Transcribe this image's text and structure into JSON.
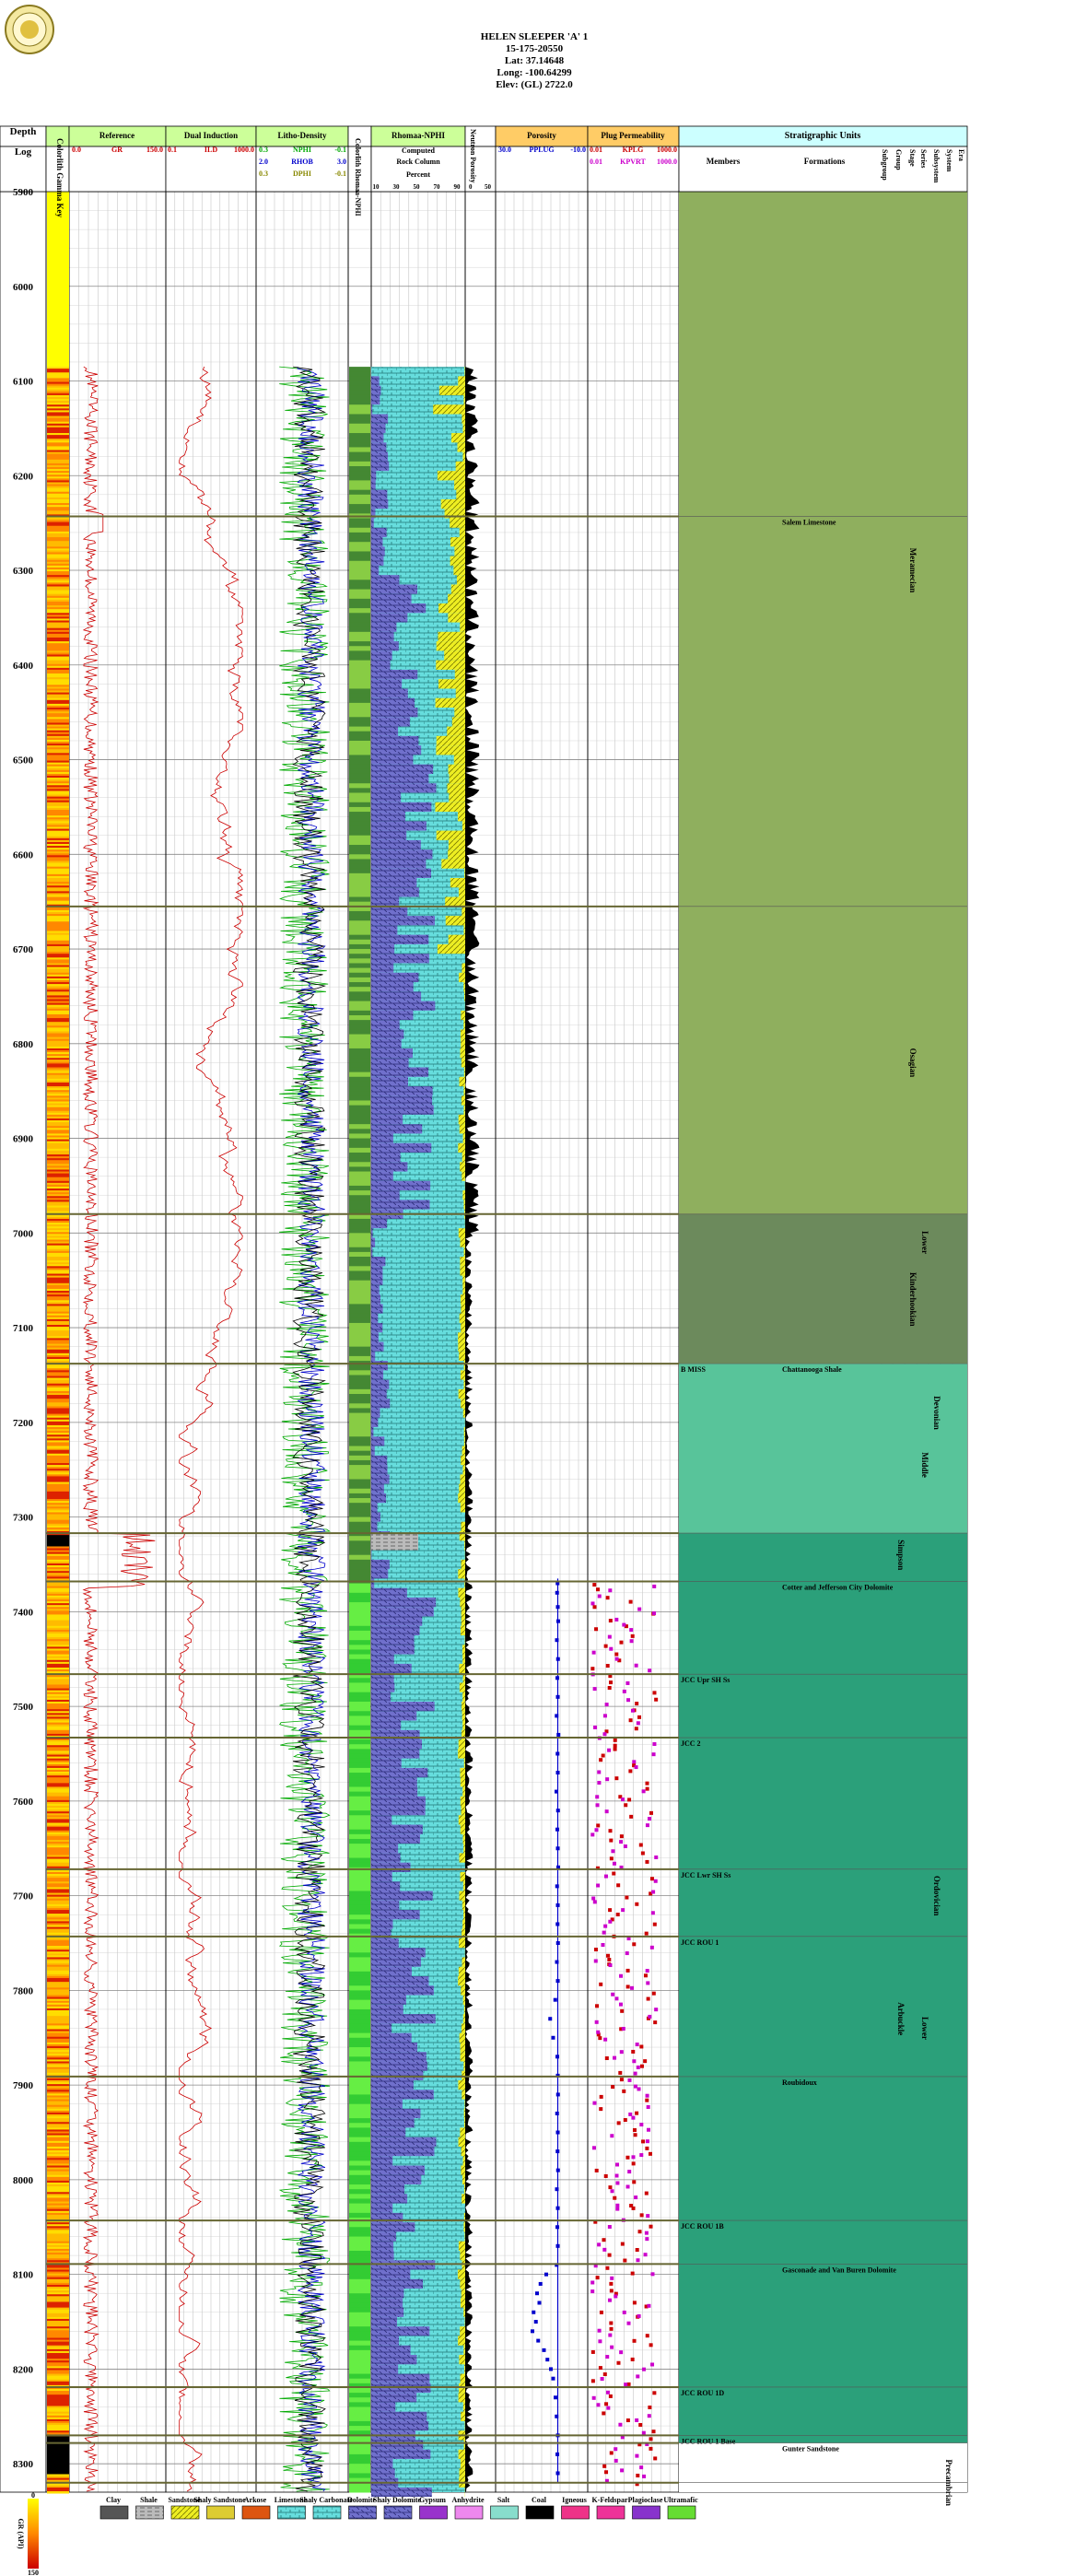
{
  "header": {
    "well_name": "HELEN SLEEPER 'A' 1",
    "api": "15-175-20550",
    "lat": "Lat: 37.14648",
    "long": "Long: -100.64299",
    "elev": "Elev: (GL) 2722.0"
  },
  "colors": {
    "gr": "#cc0000",
    "nphi": "#00aa00",
    "rhob": "#0000cc",
    "dphi": "#888800",
    "ppl": "#0000cc",
    "kplg": "#cc0000",
    "kpvrt": "#cc00cc",
    "track_hdr": "#ccff99",
    "porosity_hdr": "#ffcc66",
    "strat_hdr": "#ccffff",
    "carb_green": "#33cc33",
    "lime_blue": "#6666cc",
    "dolo_cyan": "#66dddd",
    "sand_yellow": "#dddd22"
  },
  "tracks": {
    "depth": {
      "title": "Depth",
      "subtitle": "Log"
    },
    "color_key": {
      "label": "Colorlith Gamma Key"
    },
    "reference": {
      "title": "Reference",
      "curve": "GR",
      "min": "0.0",
      "max": "150.0"
    },
    "induction": {
      "title": "Dual Induction",
      "curve": "ILD",
      "min": "0.1",
      "max": "1000.0"
    },
    "litho": {
      "title": "Litho-Density",
      "c1": "NPHI",
      "c1min": "0.3",
      "c1max": "-0.1",
      "c2": "RHOB",
      "c2min": "2.0",
      "c2max": "3.0",
      "c3": "DPHI",
      "c3min": "0.3",
      "c3max": "-0.1"
    },
    "colorlith": {
      "label": "Colorlith Rhomaa-NPHI"
    },
    "rhomaa": {
      "title": "Rhomaa-NPHI",
      "l1": "Computed",
      "l2": "Rock Column",
      "l3": "Percent",
      "ticks": [
        "10",
        "30",
        "50",
        "70",
        "90"
      ]
    },
    "neutron": {
      "label": "Neutron Porosity",
      "ticks": [
        "0",
        "50"
      ]
    },
    "porosity": {
      "title": "Porosity",
      "curve": "PPLUG",
      "min": "30.0",
      "max": "-10.0"
    },
    "perm": {
      "title": "Plug Permeability",
      "c1": "KPLG",
      "c1min": "0.01",
      "c1max": "1000.0",
      "c2": "KPVRT",
      "c2min": "0.01",
      "c2max": "1000.0"
    },
    "strat": {
      "title": "Stratigraphic Units",
      "members": "Members",
      "formations": "Formations",
      "cols": [
        "Subgroup",
        "Group",
        "Stage",
        "Series",
        "Subsystem",
        "System",
        "Era"
      ]
    }
  },
  "chart_data": {
    "type": "well_log",
    "depth_range": [
      5900,
      8330
    ],
    "depth_ticks": [
      5900,
      6000,
      6100,
      6200,
      6300,
      6400,
      6500,
      6600,
      6700,
      6800,
      6900,
      7000,
      7100,
      7200,
      7300,
      7400,
      7500,
      7600,
      7700,
      7800,
      7900,
      8000,
      8100,
      8200,
      8300
    ],
    "log_data_start": 6085,
    "tops": [
      {
        "depth": 6243,
        "formation": "Salem Limestone",
        "member": ""
      },
      {
        "depth": 6655,
        "formation": "",
        "member": ""
      },
      {
        "depth": 6980,
        "formation": "",
        "member": ""
      },
      {
        "depth": 7138,
        "formation": "Chattanooga Shale",
        "member": "B MISS"
      },
      {
        "depth": 7317,
        "formation": "",
        "member": ""
      },
      {
        "depth": 7368,
        "formation": "Cotter and Jefferson City Dolomite",
        "member": ""
      },
      {
        "depth": 7466,
        "formation": "",
        "member": "JCC Upr SH Ss"
      },
      {
        "depth": 7533,
        "formation": "",
        "member": "JCC 2"
      },
      {
        "depth": 7672,
        "formation": "",
        "member": "JCC Lwr SH Ss"
      },
      {
        "depth": 7743,
        "formation": "",
        "member": "JCC ROU 1"
      },
      {
        "depth": 7891,
        "formation": "Roubidoux",
        "member": ""
      },
      {
        "depth": 8043,
        "formation": "",
        "member": "JCC ROU 1B"
      },
      {
        "depth": 8089,
        "formation": "Gasconade and Van Buren Dolomite",
        "member": ""
      },
      {
        "depth": 8219,
        "formation": "",
        "member": "JCC ROU 1D"
      },
      {
        "depth": 8270,
        "formation": "",
        "member": "JCC ROU 1 Base"
      },
      {
        "depth": 8278,
        "formation": "Gunter Sandstone",
        "member": ""
      },
      {
        "depth": 8320,
        "formation": "",
        "member": ""
      }
    ],
    "strat_units": [
      {
        "name": "Meramecian",
        "col": "Series",
        "from": 5900,
        "to": 7138
      },
      {
        "name": "Osagian",
        "col": "Series",
        "from": 5900,
        "to": 7138
      },
      {
        "name": "Kinderhookian",
        "col": "Series",
        "from": 6980,
        "to": 7138
      },
      {
        "name": "Lower",
        "col": "Subsystem",
        "from": 6980,
        "to": 7138
      },
      {
        "name": "Devonian",
        "col": "System",
        "from": 7138,
        "to": 7317
      },
      {
        "name": "Middle",
        "col": "Subsystem",
        "from": 7138,
        "to": 7317
      },
      {
        "name": "Simpson",
        "col": "Group",
        "from": 7317,
        "to": 7368
      },
      {
        "name": "Ordovician",
        "col": "System",
        "from": 7317,
        "to": 8278
      },
      {
        "name": "Lower",
        "col": "Subsystem",
        "from": 7368,
        "to": 8278
      },
      {
        "name": "Arbuckle",
        "col": "Group",
        "from": 7368,
        "to": 8278
      },
      {
        "name": "Precambrian",
        "col": "Era",
        "from": 8278,
        "to": 8330
      }
    ],
    "strat_label_depths": {
      "Meramecian": 6300,
      "Osagian": 6820,
      "Kinderhookian": 7070,
      "Lower": 7010,
      "Devonian": 7190,
      "Middle": 7245,
      "Simpson": 7340,
      "Ordovician": 7700,
      "Lower2": 7840,
      "Arbuckle": 7830,
      "Precambrian": 8320
    },
    "porosity_values": [
      [
        7370,
        3.1
      ],
      [
        7380,
        3.3
      ],
      [
        7395,
        3.0
      ],
      [
        7410,
        2.8
      ],
      [
        7430,
        3.4
      ],
      [
        7450,
        2.9
      ],
      [
        7470,
        3.2
      ],
      [
        7490,
        3.0
      ],
      [
        7510,
        3.5
      ],
      [
        7530,
        2.7
      ],
      [
        7550,
        3.1
      ],
      [
        7570,
        3.0
      ],
      [
        7590,
        3.6
      ],
      [
        7610,
        2.9
      ],
      [
        7630,
        3.2
      ],
      [
        7650,
        3.0
      ],
      [
        7670,
        2.8
      ],
      [
        7690,
        3.3
      ],
      [
        7710,
        3.0
      ],
      [
        7730,
        3.1
      ],
      [
        7750,
        2.9
      ],
      [
        7770,
        3.4
      ],
      [
        7790,
        3.0
      ],
      [
        7810,
        4.1
      ],
      [
        7830,
        6.3
      ],
      [
        7850,
        5.0
      ],
      [
        7870,
        3.2
      ],
      [
        7890,
        3.0
      ],
      [
        7910,
        2.9
      ],
      [
        7930,
        3.3
      ],
      [
        7950,
        3.0
      ],
      [
        7970,
        3.1
      ],
      [
        7990,
        2.9
      ],
      [
        8010,
        3.4
      ],
      [
        8030,
        3.0
      ],
      [
        8050,
        3.2
      ],
      [
        8070,
        3.0
      ],
      [
        8090,
        3.5
      ],
      [
        8100,
        8.0
      ],
      [
        8110,
        10.5
      ],
      [
        8120,
        12.0
      ],
      [
        8130,
        11.0
      ],
      [
        8140,
        13.5
      ],
      [
        8150,
        12.5
      ],
      [
        8160,
        14.0
      ],
      [
        8170,
        11.5
      ],
      [
        8180,
        9.0
      ],
      [
        8190,
        7.5
      ],
      [
        8200,
        6.0
      ],
      [
        8210,
        5.0
      ],
      [
        8230,
        4.0
      ],
      [
        8250,
        3.5
      ],
      [
        8270,
        3.0
      ],
      [
        8290,
        3.2
      ],
      [
        8310,
        3.0
      ]
    ],
    "legend": [
      {
        "name": "Clay",
        "color": "#555555",
        "pattern": "dots"
      },
      {
        "name": "Shale",
        "color": "#aaaaaa",
        "pattern": "dash"
      },
      {
        "name": "Sandstone",
        "color": "#eeee22",
        "pattern": "diag"
      },
      {
        "name": "Shaly Sandstone",
        "color": "#ddcc33",
        "pattern": "diag"
      },
      {
        "name": "Arkose",
        "color": "#dd5511",
        "pattern": "dots"
      },
      {
        "name": "Limestone",
        "color": "#66dddd",
        "pattern": "brick"
      },
      {
        "name": "Shaly Carbonate",
        "color": "#66cccc",
        "pattern": "brick"
      },
      {
        "name": "Dolomite",
        "color": "#6666cc",
        "pattern": "diagbrick"
      },
      {
        "name": "Shaly Dolomite",
        "color": "#5555aa",
        "pattern": "diagbrick"
      },
      {
        "name": "Gypsum",
        "color": "#9933cc",
        "pattern": "solid"
      },
      {
        "name": "Anhydrite",
        "color": "#ee88ee",
        "pattern": "dash"
      },
      {
        "name": "Salt",
        "color": "#88ddcc",
        "pattern": "cross"
      },
      {
        "name": "Coal",
        "color": "#000000",
        "pattern": "solid"
      },
      {
        "name": "Igneous",
        "color": "#ee3388",
        "pattern": "dots"
      },
      {
        "name": "K-Feldspar",
        "color": "#ee3399",
        "pattern": "dots"
      },
      {
        "name": "Plagioclase",
        "color": "#8833cc",
        "pattern": "solid"
      },
      {
        "name": "Ultramafic",
        "color": "#66dd33",
        "pattern": "dots"
      }
    ],
    "gr_scale": {
      "label": "GR (API)",
      "min": "0",
      "max": "150"
    }
  }
}
